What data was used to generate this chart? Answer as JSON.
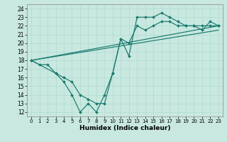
{
  "xlabel": "Humidex (Indice chaleur)",
  "bg_color": "#c8e8e0",
  "line_color": "#1a7a6e",
  "xlim": [
    -0.5,
    23.5
  ],
  "ylim": [
    11.5,
    24.5
  ],
  "xticks": [
    0,
    1,
    2,
    3,
    4,
    5,
    6,
    7,
    8,
    9,
    10,
    11,
    12,
    13,
    14,
    15,
    16,
    17,
    18,
    19,
    20,
    21,
    22,
    23
  ],
  "yticks": [
    12,
    13,
    14,
    15,
    16,
    17,
    18,
    19,
    20,
    21,
    22,
    23,
    24
  ],
  "jagged1_x": [
    0,
    1,
    2,
    3,
    4,
    5,
    6,
    7,
    8,
    9,
    10,
    11,
    12,
    13,
    14,
    15,
    16,
    17,
    18,
    19,
    20,
    21,
    22,
    23
  ],
  "jagged1_y": [
    18,
    17.5,
    17.5,
    16.5,
    15.5,
    14,
    12,
    13,
    12,
    14,
    16.5,
    20.5,
    18.5,
    23,
    23,
    23,
    23.5,
    23,
    22.5,
    22,
    22,
    21.5,
    22.5,
    22
  ],
  "jagged2_x": [
    0,
    3,
    4,
    5,
    6,
    7,
    8,
    9,
    10,
    11,
    12,
    13,
    14,
    15,
    16,
    17,
    18,
    19,
    20,
    21,
    22,
    23
  ],
  "jagged2_y": [
    18,
    16.5,
    16,
    15.5,
    14,
    13.5,
    13,
    13,
    16.5,
    20.5,
    20,
    22,
    21.5,
    22,
    22.5,
    22.5,
    22,
    22,
    22,
    22,
    22,
    22
  ],
  "trend1_x": [
    0,
    23
  ],
  "trend1_y": [
    18.0,
    22.0
  ],
  "trend2_x": [
    0,
    23
  ],
  "trend2_y": [
    18.0,
    21.5
  ]
}
